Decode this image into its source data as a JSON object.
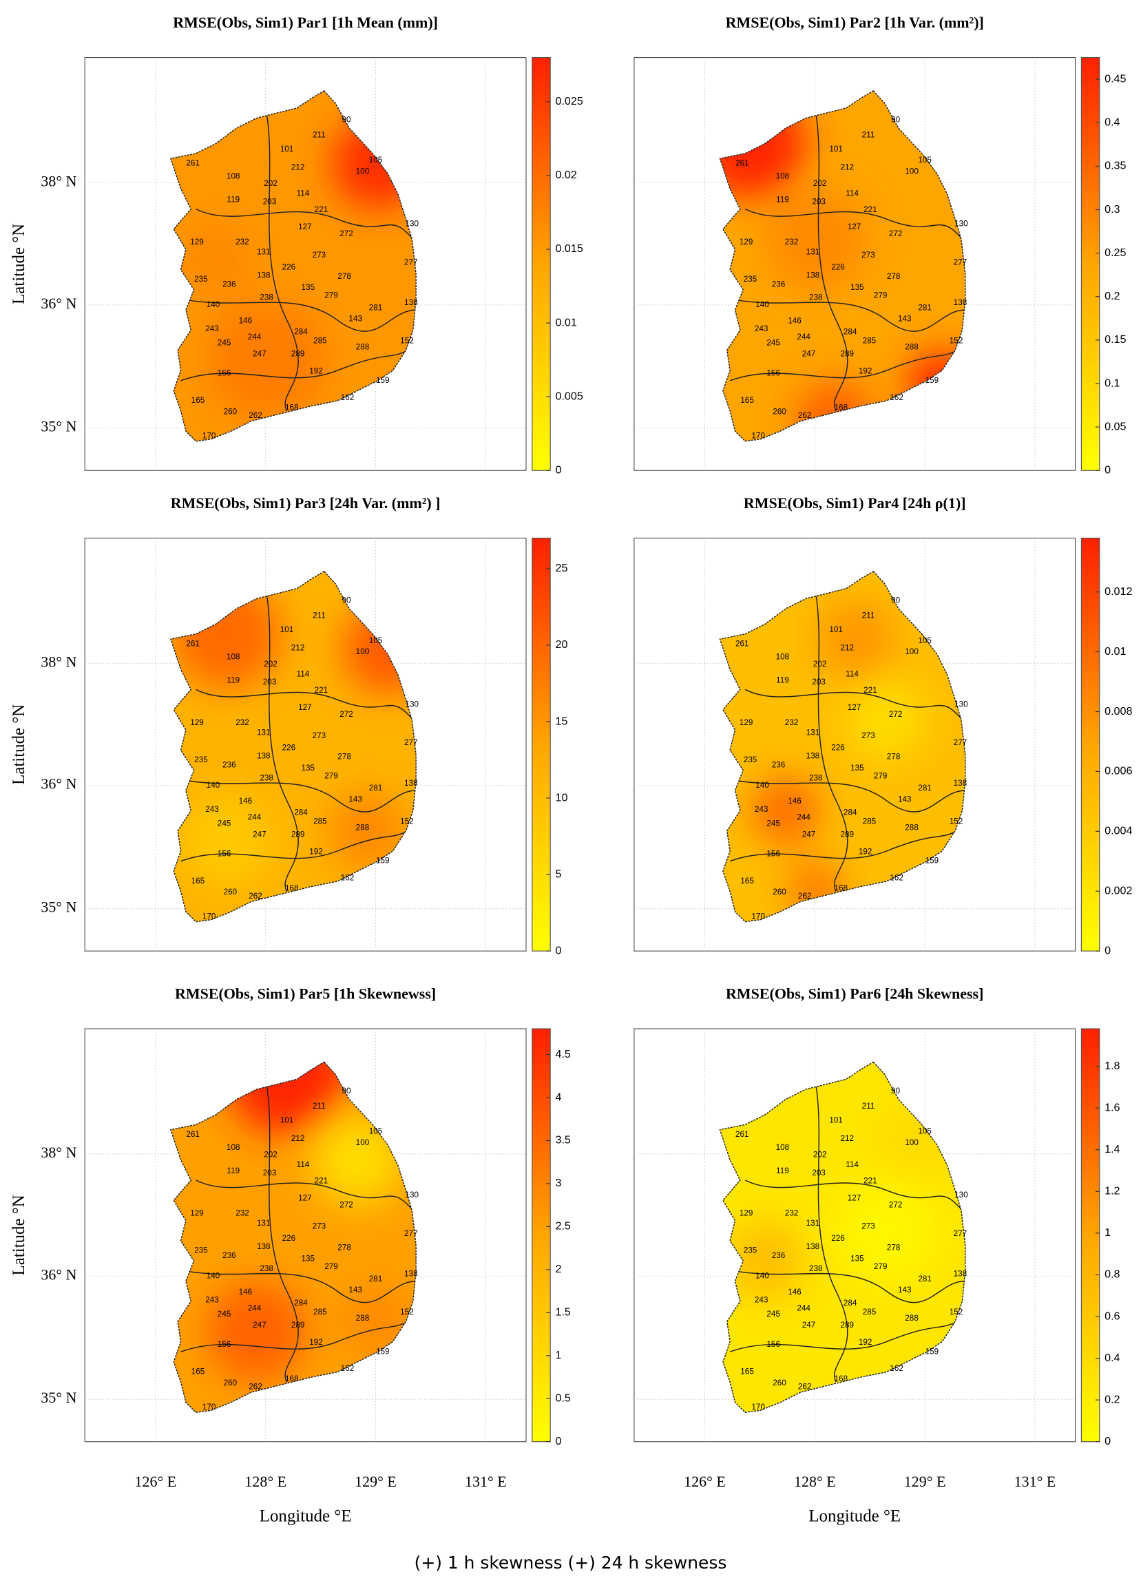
{
  "panels": [
    {
      "title": "RMSE(Obs, Sim1) Par1 [1h Mean (mm)]",
      "cbar_lim": [
        0,
        0.028
      ],
      "cbar_ticks": [
        0,
        0.005,
        0.01,
        0.015,
        0.02,
        0.025
      ]
    },
    {
      "title": "RMSE(Obs, Sim1) Par2 [1h Var. (mm²)]",
      "cbar_lim": [
        0,
        0.475
      ],
      "cbar_ticks": [
        0,
        0.05,
        0.1,
        0.15,
        0.2,
        0.25,
        0.3,
        0.35,
        0.4,
        0.45
      ]
    },
    {
      "title": "RMSE(Obs, Sim1) Par3 [24h Var. (mm²) ]",
      "cbar_lim": [
        0,
        27
      ],
      "cbar_ticks": [
        0,
        5,
        10,
        15,
        20,
        25
      ]
    },
    {
      "title": "RMSE(Obs, Sim1) Par4 [24h ρ(1)]",
      "cbar_lim": [
        0,
        0.0138
      ],
      "cbar_ticks": [
        0,
        0.002,
        0.004,
        0.006,
        0.008,
        0.01,
        0.012
      ]
    },
    {
      "title": "RMSE(Obs, Sim1) Par5 [1h Skewnewss]",
      "cbar_lim": [
        0,
        4.8
      ],
      "cbar_ticks": [
        0,
        0.5,
        1,
        1.5,
        2,
        2.5,
        3,
        3.5,
        4,
        4.5
      ]
    },
    {
      "title": "RMSE(Obs, Sim1) Par6 [24h Skewness]",
      "cbar_lim": [
        0,
        1.98
      ],
      "cbar_ticks": [
        0,
        0.2,
        0.4,
        0.6,
        0.8,
        1,
        1.2,
        1.4,
        1.6,
        1.8
      ]
    }
  ],
  "colormap": [
    "#ffff00",
    "#ffa500",
    "#ff2000"
  ],
  "lat_labels": [
    "38° N",
    "36° N",
    "35° N"
  ],
  "lon_labels": [
    "126° E",
    "128° E",
    "129° E",
    "131° E"
  ],
  "y_label": "Latitude °N",
  "x_label": "Longitude °E",
  "stations": [
    "90",
    "211",
    "105",
    "100",
    "101",
    "212",
    "261",
    "108",
    "202",
    "119",
    "203",
    "114",
    "221",
    "127",
    "130",
    "129",
    "232",
    "131",
    "272",
    "226",
    "273",
    "277",
    "235",
    "236",
    "138",
    "238",
    "135",
    "278",
    "279",
    "140",
    "146",
    "281",
    "138",
    "243",
    "244",
    "284",
    "285",
    "143",
    "245",
    "247",
    "289",
    "288",
    "152",
    "192",
    "156",
    "159",
    "162",
    "260",
    "262",
    "168",
    "165",
    "170"
  ],
  "caption": "(+) 1 h skewness (+) 24 h skewness"
}
